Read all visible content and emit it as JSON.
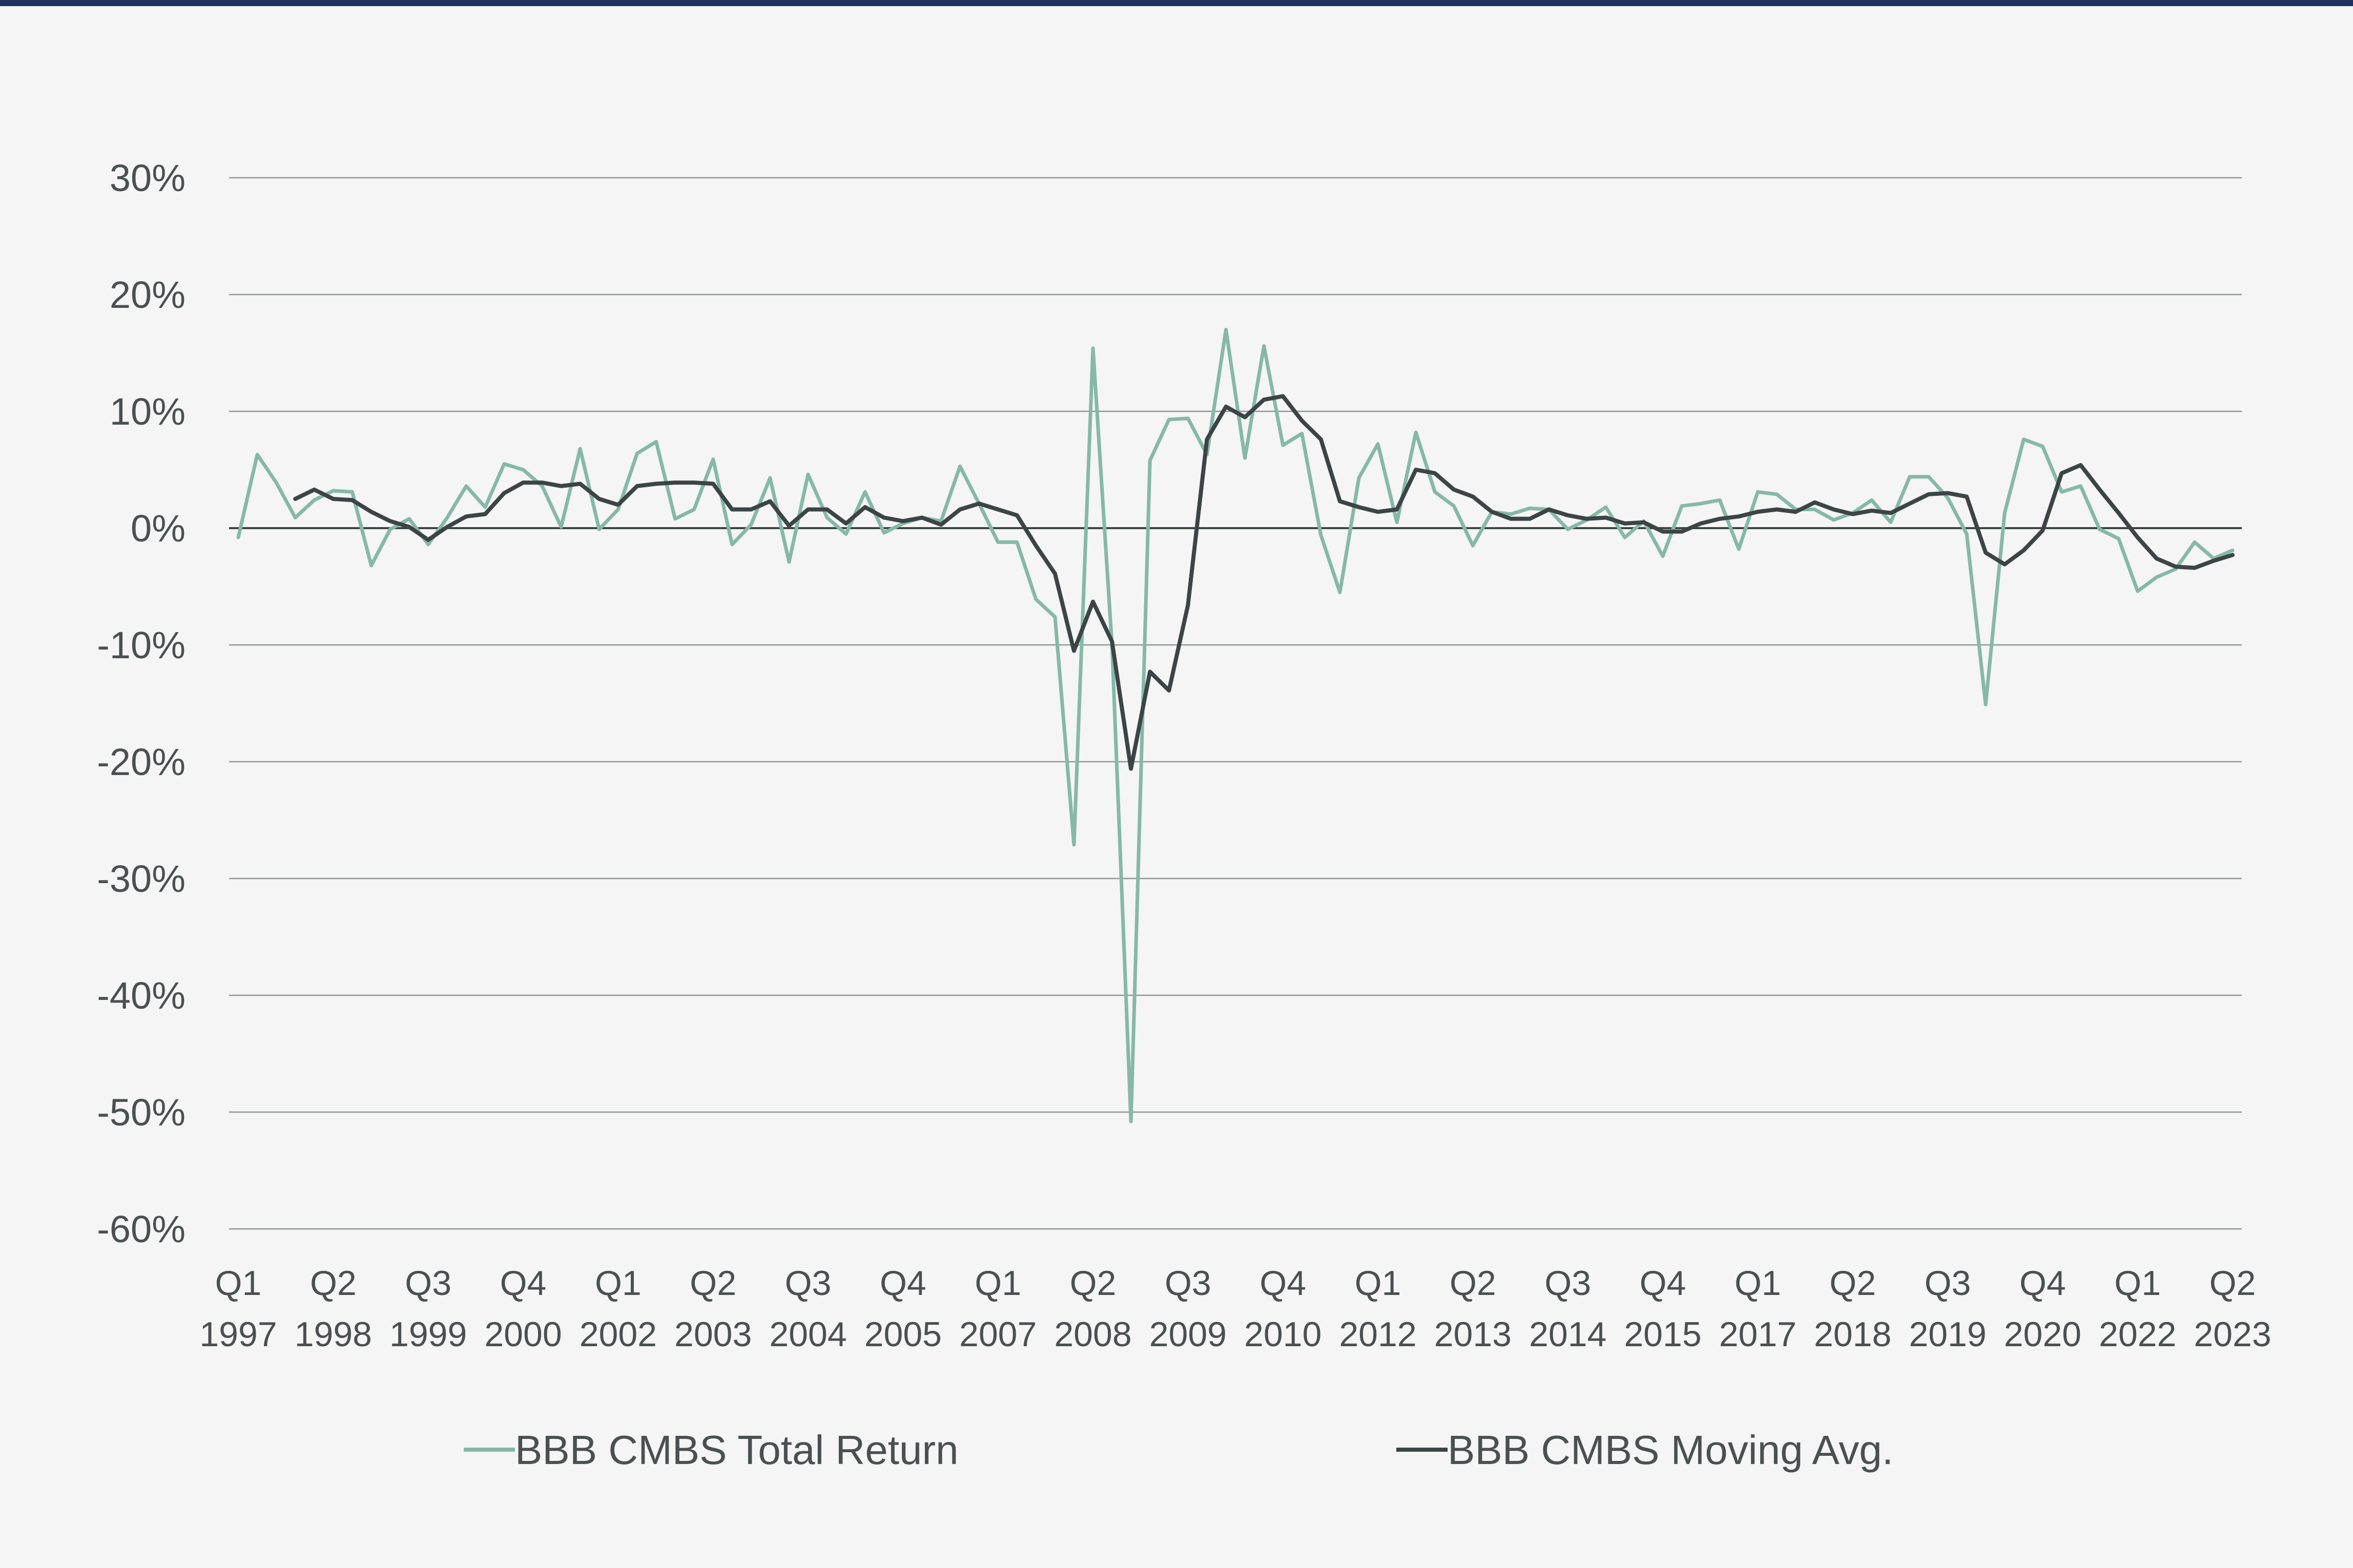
{
  "chart_data": {
    "type": "line",
    "title": "",
    "xlabel": "",
    "ylabel": "",
    "ylim": [
      -60,
      30
    ],
    "yticks": [
      30,
      20,
      10,
      0,
      -10,
      -20,
      -30,
      -40,
      -50,
      -60
    ],
    "ytick_labels": [
      "30%",
      "20%",
      "10%",
      "0%",
      "-10%",
      "-20%",
      "-30%",
      "-40%",
      "-50%",
      "-60%"
    ],
    "x_label_quarters": [
      "Q1",
      "Q2",
      "Q3",
      "Q4",
      "Q1",
      "Q2",
      "Q3",
      "Q4",
      "Q1",
      "Q2",
      "Q3",
      "Q4",
      "Q1",
      "Q2",
      "Q3",
      "Q4",
      "Q1",
      "Q2",
      "Q3",
      "Q4",
      "Q1",
      "Q2"
    ],
    "x_label_years": [
      "1997",
      "1998",
      "1999",
      "2000",
      "2002",
      "2003",
      "2004",
      "2005",
      "2007",
      "2008",
      "2009",
      "2010",
      "2012",
      "2013",
      "2014",
      "2015",
      "2017",
      "2018",
      "2019",
      "2020",
      "2022",
      "2023"
    ],
    "x_label_index": [
      0,
      5,
      10,
      15,
      20,
      25,
      30,
      35,
      40,
      45,
      50,
      55,
      60,
      65,
      70,
      75,
      80,
      85,
      90,
      95,
      100,
      105
    ],
    "grid": true,
    "legend_position": "bottom",
    "series": [
      {
        "name": "BBB CMBS Total Return",
        "color": "#86b8a8",
        "values": [
          -0.8,
          6.3,
          3.9,
          0.9,
          2.4,
          3.2,
          3.1,
          -3.2,
          -0.1,
          0.8,
          -1.4,
          0.9,
          3.6,
          1.8,
          5.5,
          5.0,
          3.6,
          0.1,
          6.8,
          -0.1,
          1.6,
          6.4,
          7.4,
          0.8,
          1.6,
          5.9,
          -1.4,
          0.3,
          4.3,
          -2.9,
          4.6,
          0.9,
          -0.5,
          3.1,
          -0.4,
          0.4,
          0.9,
          0.6,
          5.3,
          2.1,
          -1.2,
          -1.2,
          -6.1,
          -7.6,
          -27.1,
          15.4,
          -10.0,
          -50.8,
          5.8,
          9.3,
          9.4,
          6.3,
          17.0,
          6.0,
          15.6,
          7.1,
          8.1,
          -0.6,
          -5.5,
          4.3,
          7.2,
          0.5,
          8.2,
          3.1,
          1.9,
          -1.5,
          1.4,
          1.2,
          1.7,
          1.6,
          -0.1,
          0.7,
          1.8,
          -0.8,
          0.6,
          -2.4,
          1.9,
          2.1,
          2.4,
          -1.8,
          3.1,
          2.9,
          1.6,
          1.6,
          0.7,
          1.3,
          2.4,
          0.5,
          4.4,
          4.4,
          2.6,
          -0.5,
          -15.1,
          1.3,
          7.6,
          7.0,
          3.1,
          3.6,
          -0.1,
          -0.9,
          -5.4,
          -4.2,
          -3.5,
          -1.2,
          -2.6,
          -1.9
        ]
      },
      {
        "name": "BBB CMBS Moving Avg.",
        "color": "#3c4446",
        "values": [
          null,
          null,
          null,
          2.5,
          3.3,
          2.5,
          2.4,
          1.4,
          0.6,
          0.1,
          -1.0,
          0.1,
          1.0,
          1.2,
          3.0,
          3.9,
          3.9,
          3.6,
          3.8,
          2.5,
          2.0,
          3.6,
          3.8,
          3.9,
          3.9,
          3.8,
          1.6,
          1.6,
          2.3,
          0.2,
          1.6,
          1.6,
          0.4,
          1.8,
          0.9,
          0.6,
          0.9,
          0.3,
          1.6,
          2.1,
          1.6,
          1.1,
          -1.5,
          -3.9,
          -10.5,
          -6.3,
          -9.7,
          -20.6,
          -12.3,
          -13.9,
          -6.6,
          7.6,
          10.4,
          9.5,
          11.0,
          11.3,
          9.2,
          7.6,
          2.3,
          1.8,
          1.4,
          1.6,
          5.0,
          4.7,
          3.3,
          2.7,
          1.4,
          0.8,
          0.8,
          1.6,
          1.1,
          0.8,
          0.9,
          0.4,
          0.5,
          -0.3,
          -0.3,
          0.4,
          0.8,
          1.0,
          1.4,
          1.6,
          1.4,
          2.2,
          1.6,
          1.2,
          1.5,
          1.3,
          2.1,
          2.9,
          3.0,
          2.7,
          -2.1,
          -3.1,
          -1.9,
          -0.2,
          4.7,
          5.4,
          3.3,
          1.3,
          -0.8,
          -2.6,
          -3.3,
          -3.4,
          -2.8,
          -2.3
        ]
      }
    ]
  }
}
